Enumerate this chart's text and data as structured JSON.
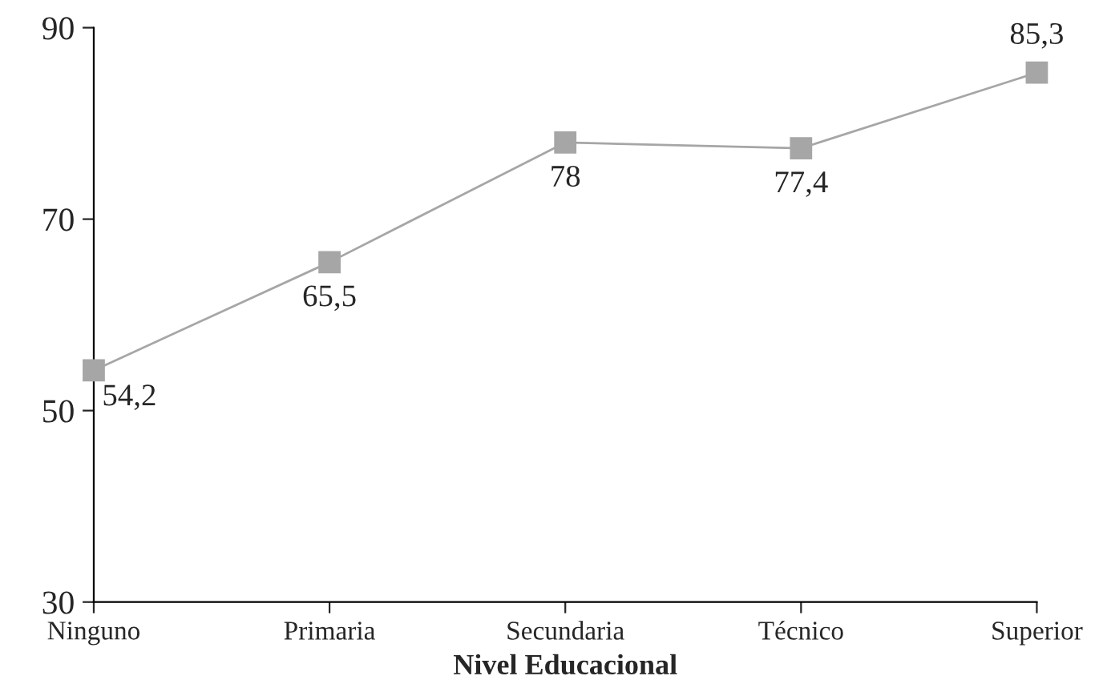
{
  "chart_data": {
    "type": "line",
    "xlabel": "Nivel Educacional",
    "categories": [
      "Ninguno",
      "Primaria",
      "Secundaria",
      "Técnico",
      "Superior"
    ],
    "series": [
      {
        "color": "#a6a6a6",
        "values": [
          54.2,
          65.5,
          78,
          77.4,
          85.3
        ],
        "value_labels": [
          "54,2",
          "65,5",
          "78",
          "77,4",
          "85,3"
        ]
      }
    ],
    "ylim": [
      30,
      90
    ],
    "yticks": [
      30,
      50,
      70,
      90
    ],
    "grid": false,
    "marker": "square",
    "line_style": "solid"
  }
}
